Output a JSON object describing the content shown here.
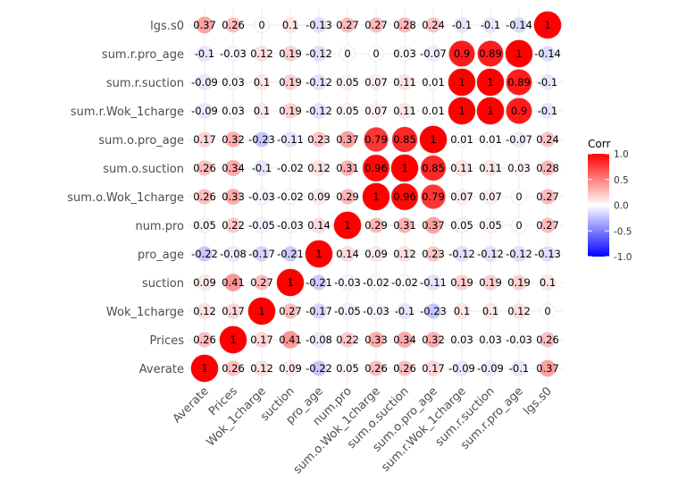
{
  "chart_data": {
    "type": "heatmap",
    "title": "",
    "variables": [
      "Averate",
      "Prices",
      "Wok_1charge",
      "suction",
      "pro_age",
      "num.pro",
      "sum.o.Wok_1charge",
      "sum.o.suction",
      "sum.o.pro_age",
      "sum.r.Wok_1charge",
      "sum.r.suction",
      "sum.r.pro_age",
      "lgs.s0"
    ],
    "x_labels": [
      "Averate",
      "Prices",
      "Wok_1charge",
      "suction",
      "pro_age",
      "num.pro",
      "sum.o.Wok_1charge",
      "sum.o.suction",
      "sum.o.pro_age",
      "sum.r.Wok_1charge",
      "sum.r.suction",
      "sum.r.pro_age",
      "lgs.s0"
    ],
    "y_labels": [
      "Averate",
      "Prices",
      "Wok_1charge",
      "suction",
      "pro_age",
      "num.pro",
      "sum.o.Wok_1charge",
      "sum.o.suction",
      "sum.o.pro_age",
      "sum.r.Wok_1charge",
      "sum.r.suction",
      "sum.r.pro_age",
      "lgs.s0"
    ],
    "matrix": [
      [
        1,
        0.26,
        0.12,
        0.09,
        -0.22,
        0.05,
        0.26,
        0.26,
        0.17,
        -0.09,
        -0.09,
        -0.1,
        0.37
      ],
      [
        0.26,
        1,
        0.17,
        0.41,
        -0.08,
        0.22,
        0.33,
        0.34,
        0.32,
        0.03,
        0.03,
        -0.03,
        0.26
      ],
      [
        0.12,
        0.17,
        1,
        0.27,
        -0.17,
        -0.05,
        -0.03,
        -0.1,
        -0.23,
        0.1,
        0.1,
        0.12,
        0
      ],
      [
        0.09,
        0.41,
        0.27,
        1,
        -0.21,
        -0.03,
        -0.02,
        -0.02,
        -0.11,
        0.19,
        0.19,
        0.19,
        0.1
      ],
      [
        -0.22,
        -0.08,
        -0.17,
        -0.21,
        1,
        0.14,
        0.09,
        0.12,
        0.23,
        -0.12,
        -0.12,
        -0.12,
        -0.13
      ],
      [
        0.05,
        0.22,
        -0.05,
        -0.03,
        0.14,
        1,
        0.29,
        0.31,
        0.37,
        0.05,
        0.05,
        0,
        0.27
      ],
      [
        0.26,
        0.33,
        -0.03,
        -0.02,
        0.09,
        0.29,
        1,
        0.96,
        0.79,
        0.07,
        0.07,
        0,
        0.27
      ],
      [
        0.26,
        0.34,
        -0.1,
        -0.02,
        0.12,
        0.31,
        0.96,
        1,
        0.85,
        0.11,
        0.11,
        0.03,
        0.28
      ],
      [
        0.17,
        0.32,
        -0.23,
        -0.11,
        0.23,
        0.37,
        0.79,
        0.85,
        1,
        0.01,
        0.01,
        -0.07,
        0.24
      ],
      [
        -0.09,
        0.03,
        0.1,
        0.19,
        -0.12,
        0.05,
        0.07,
        0.11,
        0.01,
        1,
        1,
        0.9,
        -0.1
      ],
      [
        -0.09,
        0.03,
        0.1,
        0.19,
        -0.12,
        0.05,
        0.07,
        0.11,
        0.01,
        1,
        1,
        0.89,
        -0.1
      ],
      [
        -0.1,
        -0.03,
        0.12,
        0.19,
        -0.12,
        0,
        0,
        0.03,
        -0.07,
        0.9,
        0.89,
        1,
        -0.14
      ],
      [
        0.37,
        0.26,
        0,
        0.1,
        -0.13,
        0.27,
        0.27,
        0.28,
        0.24,
        -0.1,
        -0.1,
        -0.14,
        1
      ]
    ],
    "legend": {
      "title": "Corr",
      "ticks": [
        "1.0",
        "0.5",
        "0.0",
        "-0.5",
        "-1.0"
      ],
      "tick_values": [
        1,
        0.5,
        0,
        -0.5,
        -1
      ],
      "position": "right",
      "colors": {
        "low": "#0000ff",
        "mid": "#ffffff",
        "high": "#ff0000"
      }
    },
    "value_range": [
      -1,
      1
    ],
    "marker": "circle sized by |corr|",
    "grid": true
  }
}
